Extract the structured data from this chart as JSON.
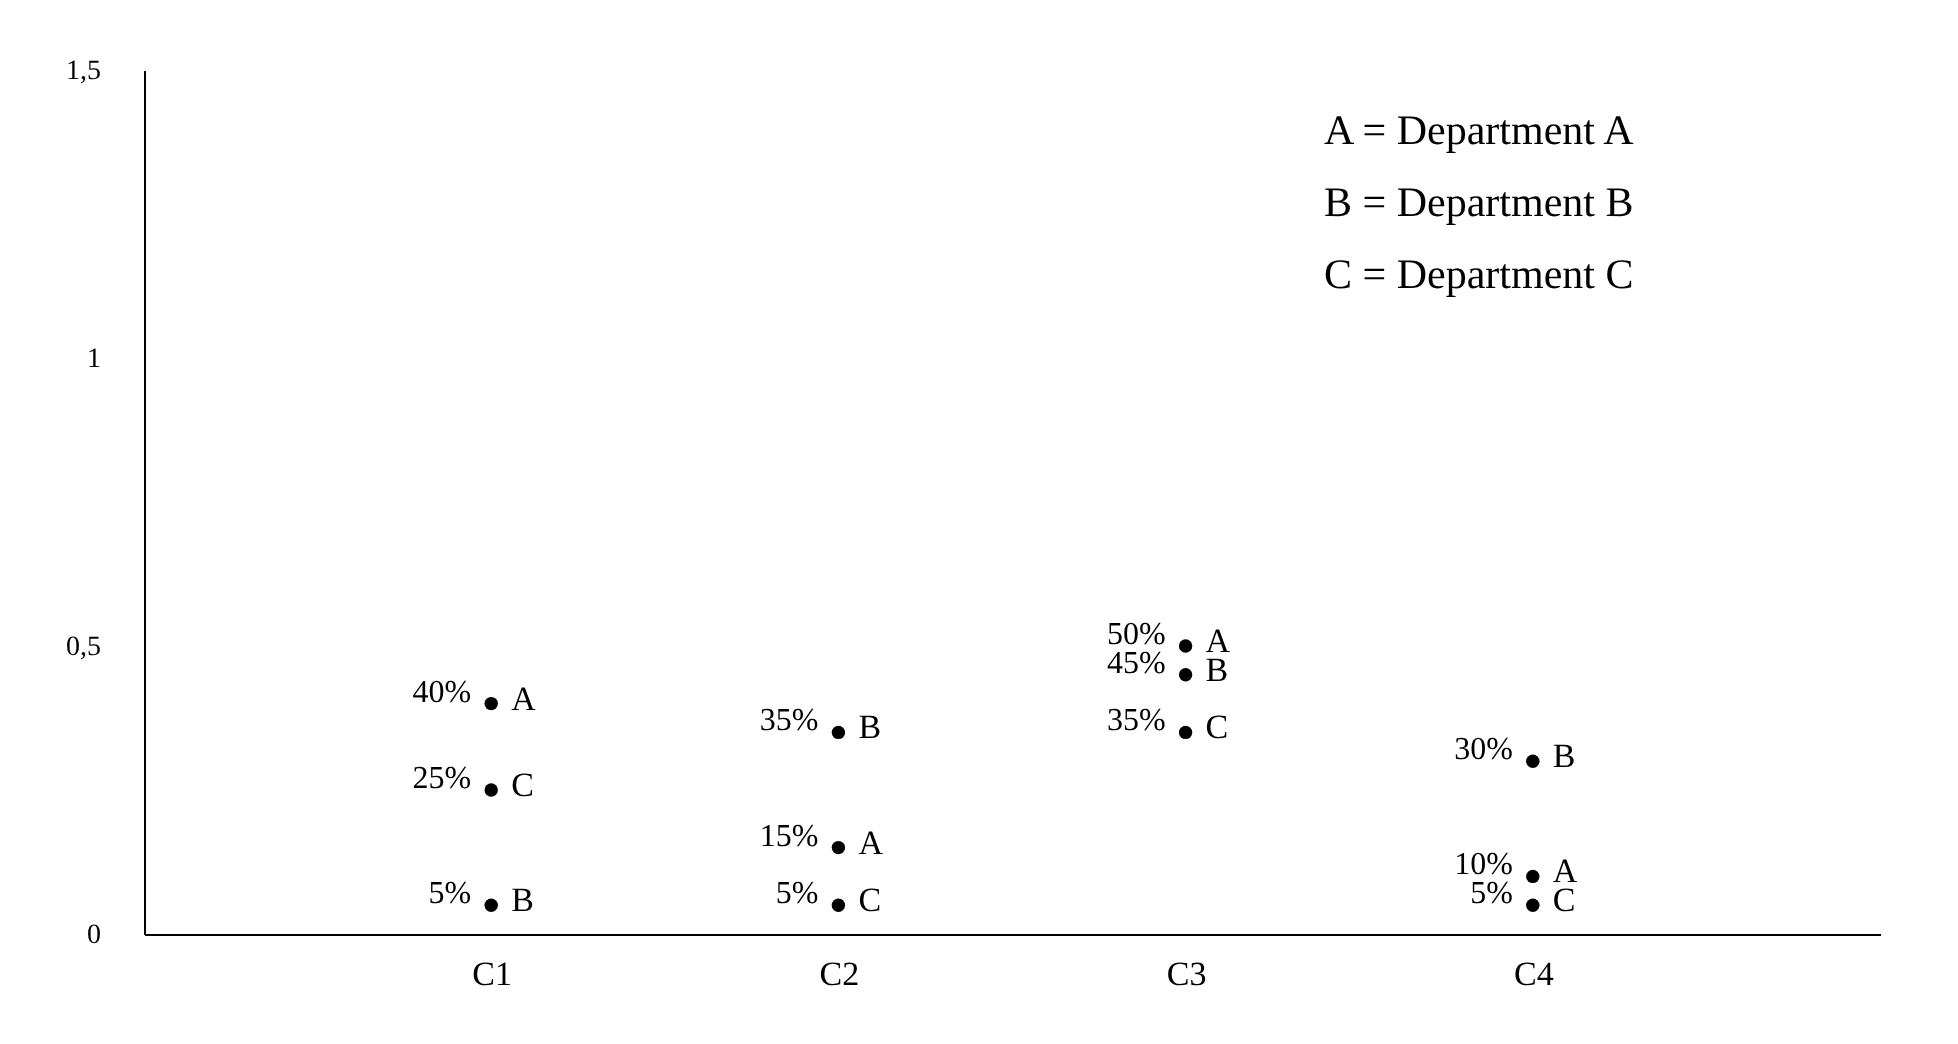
{
  "chart_data": {
    "type": "scatter",
    "categories": [
      "C1",
      "C2",
      "C3",
      "C4"
    ],
    "series": [
      {
        "name": "A",
        "color": "#000000",
        "values": [
          0.4,
          0.15,
          0.5,
          0.1
        ],
        "value_labels": [
          "40%",
          "15%",
          "50%",
          "10%"
        ]
      },
      {
        "name": "B",
        "color": "#000000",
        "values": [
          0.05,
          0.35,
          0.45,
          0.3
        ],
        "value_labels": [
          "5%",
          "35%",
          "45%",
          "30%"
        ]
      },
      {
        "name": "C",
        "color": "#000000",
        "values": [
          0.25,
          0.05,
          0.35,
          0.05
        ],
        "value_labels": [
          "25%",
          "5%",
          "35%",
          "5%"
        ]
      }
    ],
    "ylim": [
      0,
      1.5
    ],
    "yticks": [
      0,
      {
        "value": 0.5,
        "label": "0,5"
      },
      1,
      {
        "value": 1.5,
        "label": "1,5"
      }
    ],
    "marker": "circle",
    "annotations": [
      "A = Department A",
      "B = Department B",
      "C = Department C"
    ]
  }
}
